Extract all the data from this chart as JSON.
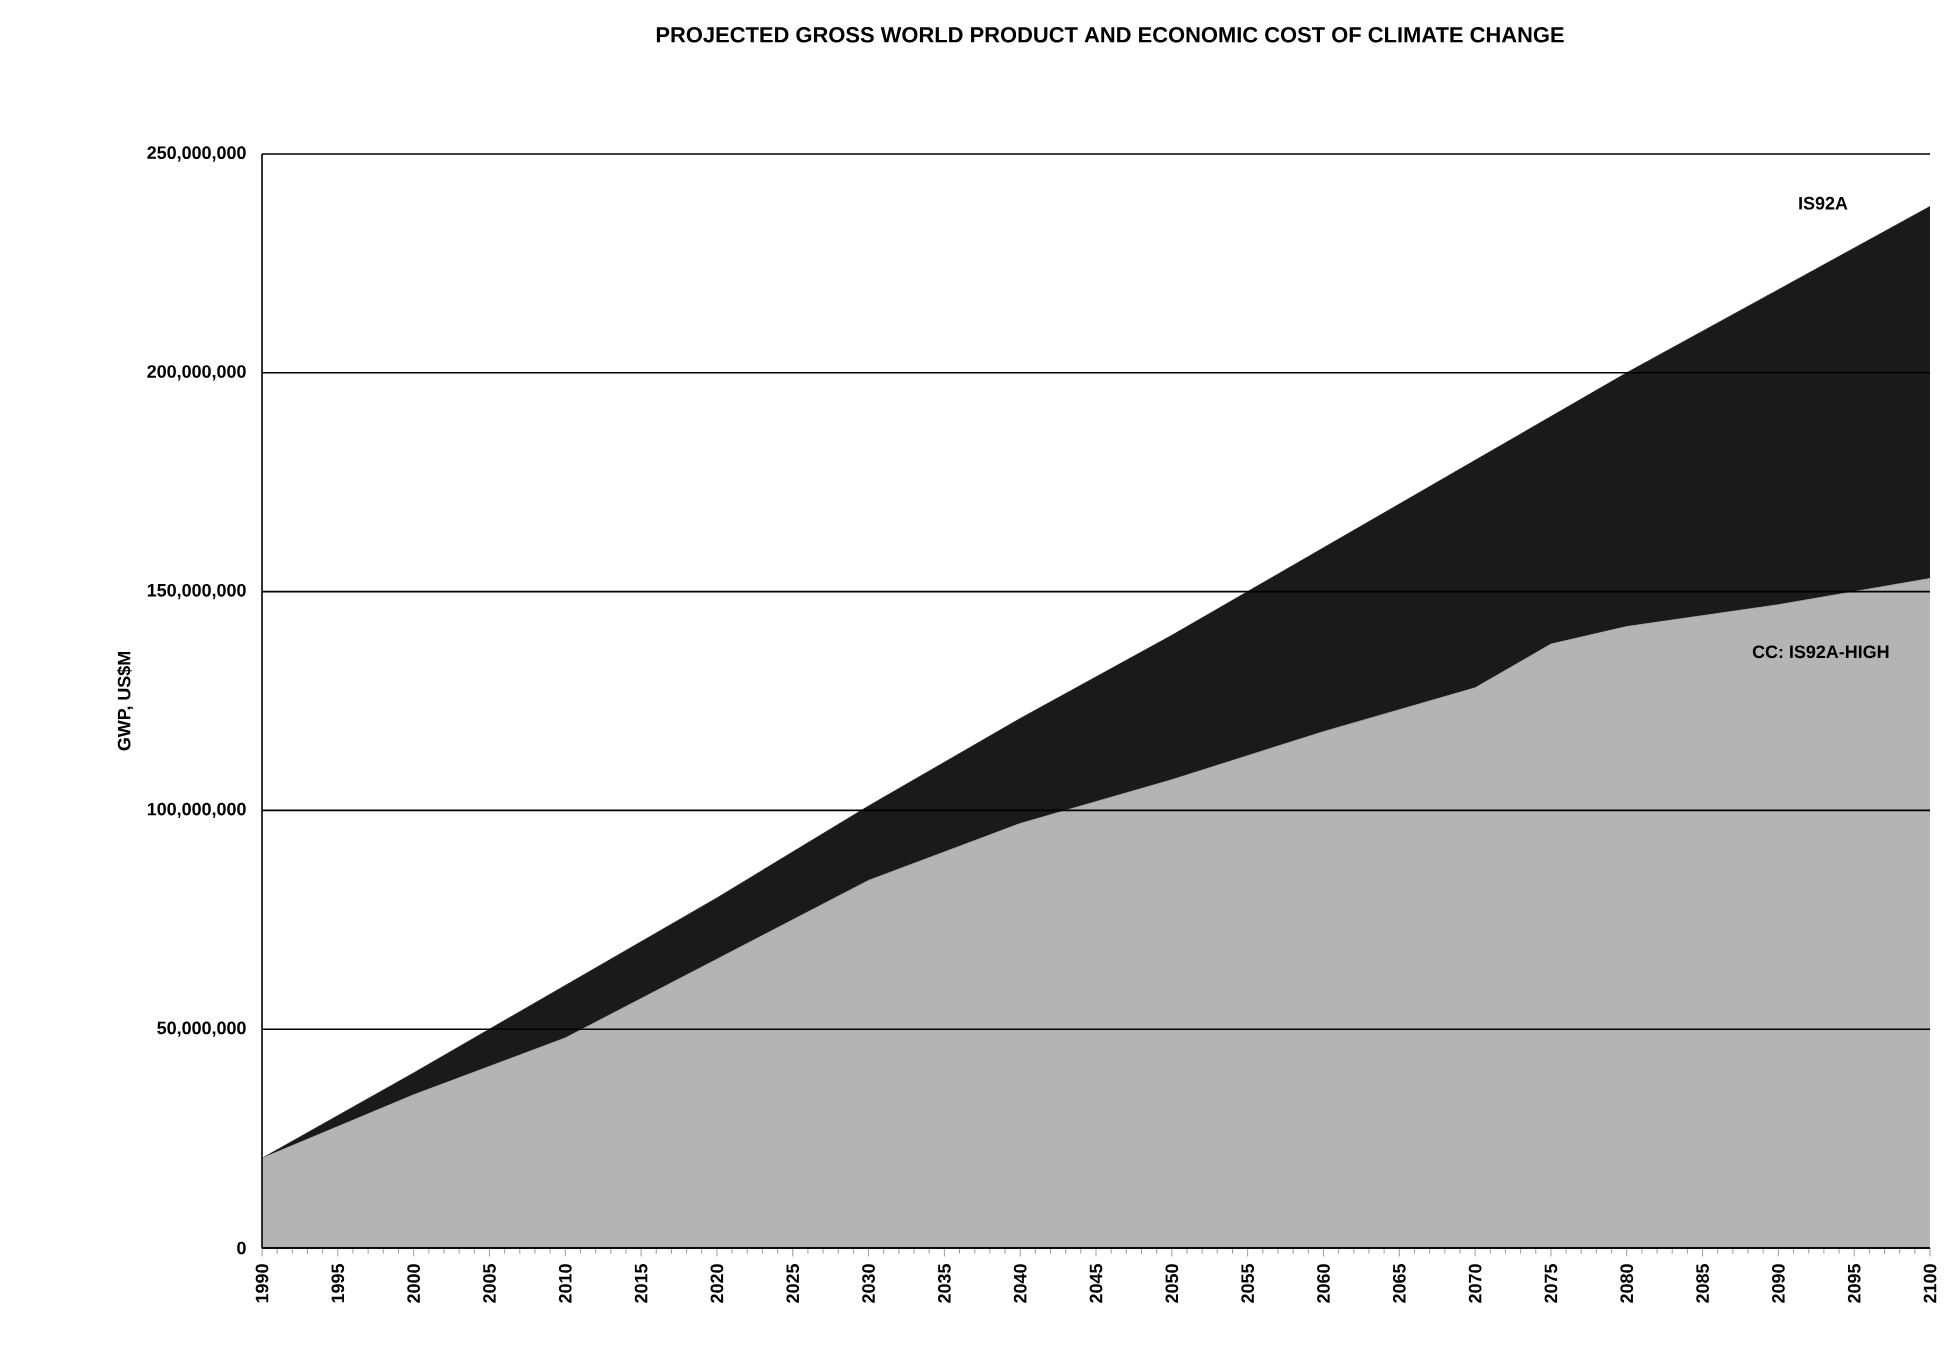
{
  "chart_data": {
    "type": "area",
    "title": "PROJECTED GROSS WORLD PRODUCT AND ECONOMIC COST OF CLIMATE CHANGE",
    "ylabel": "GWP, US$M",
    "series": [
      {
        "name": "IS92A",
        "color": "#1a1a1a",
        "x": [
          1990,
          2000,
          2010,
          2020,
          2030,
          2040,
          2050,
          2060,
          2070,
          2080,
          2090,
          2100
        ],
        "values": [
          20500000,
          40000000,
          60000000,
          80000000,
          101000000,
          121000000,
          140000000,
          160000000,
          180000000,
          200000000,
          219000000,
          238000000
        ]
      },
      {
        "name": "CC: IS92A-HIGH",
        "color": "#b4b4b4",
        "x": [
          1990,
          2000,
          2010,
          2020,
          2030,
          2040,
          2050,
          2060,
          2070,
          2075,
          2080,
          2090,
          2100
        ],
        "values": [
          20500000,
          35000000,
          48000000,
          66000000,
          84000000,
          97000000,
          107000000,
          118000000,
          128000000,
          138000000,
          142000000,
          147000000,
          153000000
        ]
      }
    ],
    "xlim": [
      1990,
      2100
    ],
    "xticks": [
      1990,
      1995,
      2000,
      2005,
      2010,
      2015,
      2020,
      2025,
      2030,
      2035,
      2040,
      2045,
      2050,
      2055,
      2060,
      2065,
      2070,
      2075,
      2080,
      2085,
      2090,
      2095,
      2100
    ],
    "ylim": [
      0,
      250000000
    ],
    "yticks": [
      0,
      {
        "value": 50000000,
        "label": "50,000,000"
      },
      {
        "value": 100000000,
        "label": "100,000,000"
      },
      {
        "value": 150000000,
        "label": "150,000,000"
      },
      {
        "value": 200000000,
        "label": "200,000,000"
      },
      {
        "value": 250000000,
        "label": "250,000,000"
      }
    ],
    "grid": "y"
  }
}
